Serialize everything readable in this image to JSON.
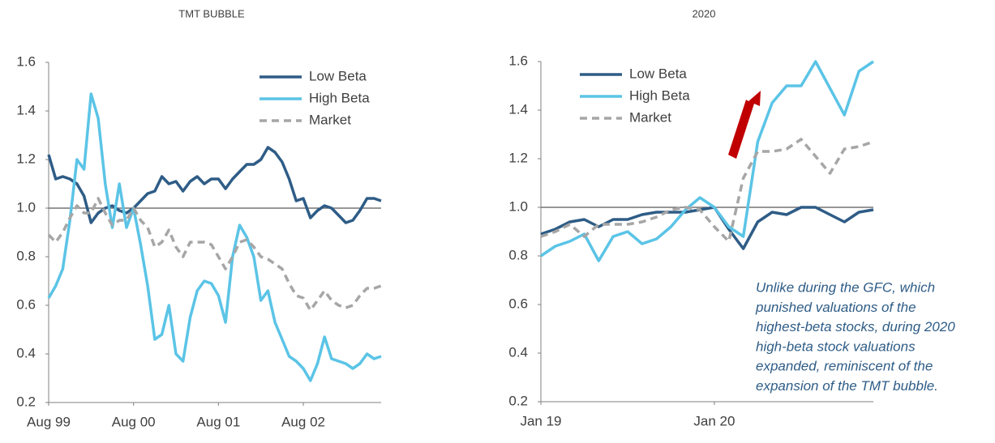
{
  "chart_data": [
    {
      "type": "line",
      "title": "TMT BUBBLE",
      "categories": [
        "Aug 99",
        null,
        null,
        null,
        null,
        null,
        null,
        null,
        null,
        null,
        null,
        null,
        "Aug 00",
        null,
        null,
        null,
        null,
        null,
        null,
        null,
        null,
        null,
        null,
        null,
        "Aug 01",
        null,
        null,
        null,
        null,
        null,
        null,
        null,
        null,
        null,
        null,
        null,
        "Aug 02",
        null,
        null,
        null,
        null,
        null,
        null,
        null,
        null,
        null,
        null,
        null
      ],
      "series": [
        {
          "name": "Low Beta",
          "color": "#2e5c86",
          "linestyle": "solid",
          "values": [
            1.22,
            1.12,
            1.13,
            1.12,
            1.1,
            1.05,
            0.94,
            0.98,
            1.0,
            1.01,
            0.99,
            0.98,
            1.0,
            1.03,
            1.06,
            1.07,
            1.13,
            1.1,
            1.11,
            1.07,
            1.11,
            1.13,
            1.1,
            1.12,
            1.12,
            1.08,
            1.12,
            1.15,
            1.18,
            1.18,
            1.2,
            1.25,
            1.23,
            1.19,
            1.12,
            1.03,
            1.04,
            0.96,
            0.99,
            1.01,
            1.0,
            0.97,
            0.94,
            0.95,
            0.99,
            1.04,
            1.04,
            1.03
          ]
        },
        {
          "name": "High Beta",
          "color": "#5bc4e6",
          "linestyle": "solid",
          "values": [
            0.63,
            0.68,
            0.75,
            0.95,
            1.2,
            1.16,
            1.47,
            1.37,
            1.1,
            0.92,
            1.1,
            0.92,
            1.0,
            0.85,
            0.68,
            0.46,
            0.48,
            0.6,
            0.4,
            0.37,
            0.55,
            0.66,
            0.7,
            0.69,
            0.64,
            0.53,
            0.8,
            0.93,
            0.88,
            0.8,
            0.62,
            0.66,
            0.53,
            0.46,
            0.39,
            0.37,
            0.34,
            0.29,
            0.36,
            0.47,
            0.38,
            0.37,
            0.36,
            0.34,
            0.36,
            0.4,
            0.38,
            0.39
          ]
        },
        {
          "name": "Market",
          "color": "#a6a6a6",
          "linestyle": "dashed",
          "values": [
            0.89,
            0.86,
            0.9,
            0.96,
            1.01,
            0.98,
            0.98,
            1.04,
            0.98,
            0.93,
            0.95,
            0.95,
            1.0,
            0.95,
            0.92,
            0.84,
            0.86,
            0.91,
            0.84,
            0.8,
            0.86,
            0.86,
            0.86,
            0.85,
            0.8,
            0.75,
            0.8,
            0.86,
            0.87,
            0.84,
            0.8,
            0.79,
            0.77,
            0.75,
            0.69,
            0.64,
            0.63,
            0.58,
            0.62,
            0.66,
            0.62,
            0.6,
            0.59,
            0.6,
            0.64,
            0.67,
            0.67,
            0.68
          ]
        }
      ],
      "ylim": [
        0.2,
        1.6
      ],
      "yticks": [
        0.2,
        0.4,
        0.6,
        0.8,
        {
          "value": 1,
          "label": "1.0"
        },
        1.2,
        1.4,
        1.6
      ],
      "reference_line": 1,
      "legend": "upper right",
      "grid": false
    },
    {
      "type": "line",
      "title": "2020",
      "categories": [
        "Jan 19",
        null,
        null,
        null,
        null,
        null,
        null,
        null,
        null,
        null,
        null,
        null,
        "Jan 20",
        null,
        null,
        null,
        null,
        null,
        null,
        null,
        null,
        null,
        null,
        null
      ],
      "series": [
        {
          "name": "Low Beta",
          "color": "#2e5c86",
          "linestyle": "solid",
          "values": [
            0.89,
            0.91,
            0.94,
            0.95,
            0.92,
            0.95,
            0.95,
            0.97,
            0.98,
            0.98,
            0.98,
            0.99,
            1.0,
            0.91,
            0.83,
            0.94,
            0.98,
            0.97,
            1.0,
            1.0,
            0.97,
            0.94,
            0.98,
            0.99
          ]
        },
        {
          "name": "High Beta",
          "color": "#5bc4e6",
          "linestyle": "solid",
          "values": [
            0.8,
            0.84,
            0.86,
            0.89,
            0.78,
            0.88,
            0.9,
            0.85,
            0.87,
            0.92,
            0.99,
            1.04,
            1.0,
            0.92,
            0.88,
            1.27,
            1.43,
            1.5,
            1.5,
            1.6,
            1.49,
            1.38,
            1.56,
            1.6
          ]
        },
        {
          "name": "Market",
          "color": "#a6a6a6",
          "linestyle": "dashed",
          "values": [
            0.88,
            0.9,
            0.93,
            0.88,
            0.93,
            0.93,
            0.93,
            0.94,
            0.96,
            0.99,
            1.0,
            0.99,
            0.92,
            0.86,
            1.12,
            1.23,
            1.23,
            1.24,
            1.28,
            1.21,
            1.14,
            1.24,
            1.25,
            1.27
          ]
        }
      ],
      "ylim": [
        0.2,
        1.6
      ],
      "yticks": [
        0.2,
        0.4,
        0.6,
        0.8,
        {
          "value": 1,
          "label": "1.0"
        },
        1.2,
        1.4,
        1.6
      ],
      "reference_line": 1,
      "legend": "upper left",
      "grid": false,
      "annotation": [
        "Unlike during the GFC, which",
        "punished valuations of the",
        "highest-beta stocks, during 2020",
        "high-beta stock valuations",
        "expanded, reminiscent of the",
        "expansion of the TMT bubble."
      ]
    }
  ]
}
